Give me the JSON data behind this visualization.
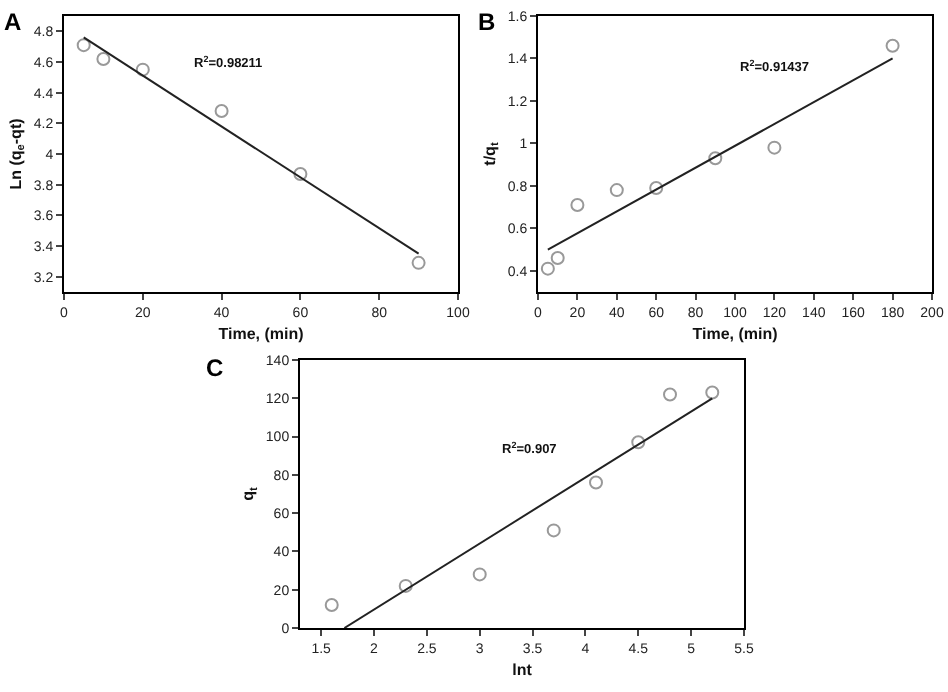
{
  "chart_data": [
    {
      "type": "scatter",
      "title": "A",
      "xlabel": "Time, (min)",
      "ylabel": "Ln (q$_{e}$-qt)",
      "xlim": [
        0,
        100
      ],
      "xticks": [
        0,
        20,
        40,
        60,
        80,
        100
      ],
      "ylim": [
        3.1,
        4.9
      ],
      "yticks": [
        3.2,
        3.4,
        3.6,
        3.8,
        4.0,
        4.2,
        4.4,
        4.6,
        4.8
      ],
      "series": [
        {
          "type": "scatter",
          "color": "#999999",
          "marker": "circle",
          "x": [
            5,
            10,
            20,
            40,
            60,
            90
          ],
          "values": [
            4.71,
            4.62,
            4.55,
            4.28,
            3.87,
            3.29
          ]
        },
        {
          "type": "line",
          "color": "#222222",
          "marker": "none",
          "x": [
            5,
            90
          ],
          "values": [
            4.76,
            3.35
          ]
        }
      ],
      "annotations": [
        "R$^{2}$=0.98211"
      ]
    },
    {
      "type": "scatter",
      "title": "B",
      "xlabel": "Time, (min)",
      "ylabel": "t/q$_{t}$",
      "xlim": [
        0,
        200
      ],
      "xticks": [
        0,
        20,
        40,
        60,
        80,
        100,
        120,
        140,
        160,
        180,
        200
      ],
      "ylim": [
        0.3,
        1.6
      ],
      "yticks": [
        0.4,
        0.6,
        0.8,
        1.0,
        1.2,
        1.4,
        1.6
      ],
      "series": [
        {
          "type": "scatter",
          "color": "#999999",
          "marker": "circle",
          "x": [
            5,
            10,
            20,
            40,
            60,
            90,
            120,
            180
          ],
          "values": [
            0.41,
            0.46,
            0.71,
            0.78,
            0.79,
            0.93,
            0.98,
            1.46
          ]
        },
        {
          "type": "line",
          "color": "#222222",
          "marker": "none",
          "x": [
            5,
            180
          ],
          "values": [
            0.5,
            1.4
          ]
        }
      ],
      "annotations": [
        "R$^{2}$=0.91437"
      ]
    },
    {
      "type": "scatter",
      "title": "C",
      "xlabel": "lnt",
      "ylabel": "q$_{t}$",
      "xlim": [
        1.3,
        5.5
      ],
      "xticks": [
        1.5,
        2.0,
        2.5,
        3.0,
        3.5,
        4.0,
        4.5,
        5.0,
        5.5
      ],
      "ylim": [
        0,
        140
      ],
      "yticks": [
        0,
        20,
        40,
        60,
        80,
        100,
        120,
        140
      ],
      "series": [
        {
          "type": "scatter",
          "color": "#999999",
          "marker": "circle",
          "x": [
            1.6,
            2.3,
            3.0,
            3.7,
            4.1,
            4.5,
            4.8,
            5.2
          ],
          "values": [
            12,
            22,
            28,
            51,
            76,
            97,
            122,
            123
          ]
        },
        {
          "type": "line",
          "color": "#222222",
          "marker": "none",
          "x": [
            1.72,
            5.2
          ],
          "values": [
            0,
            120
          ]
        }
      ],
      "annotations": [
        "R$^{2}$=0.907"
      ]
    }
  ]
}
